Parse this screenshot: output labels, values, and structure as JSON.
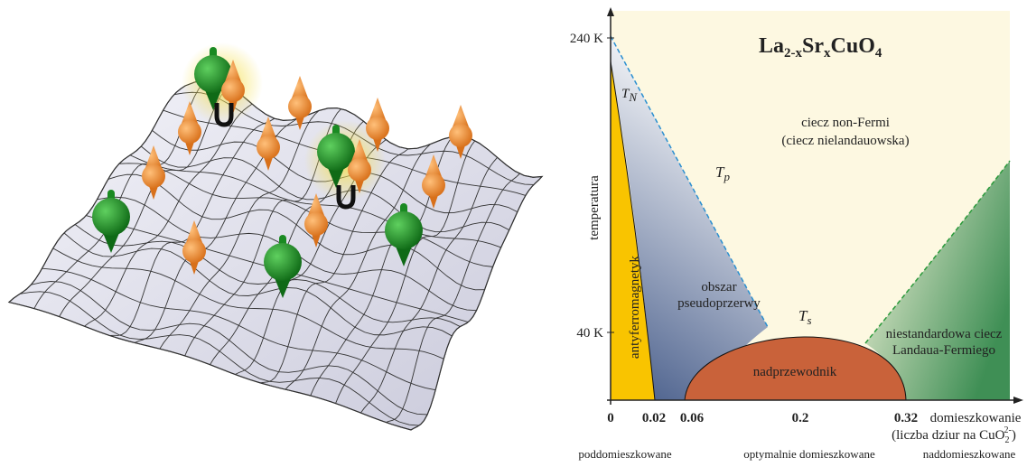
{
  "formula": {
    "parts": [
      "La",
      "2-x",
      "Sr",
      "x",
      "CuO",
      "4"
    ]
  },
  "y_axis": {
    "label": "temperatura",
    "ticks": [
      "240 K",
      "40 K"
    ]
  },
  "x_axis": {
    "ticks": [
      "0",
      "0.02",
      "0.06",
      "0.2",
      "0.32"
    ],
    "label": "domieszkowanie",
    "sublabel": {
      "parts": [
        "(liczba dziur  na CuO",
        "2",
        "2-",
        ")"
      ]
    }
  },
  "lines": {
    "tn": [
      "T",
      "N"
    ],
    "tp": [
      "T",
      "p"
    ],
    "ts": [
      "T",
      "s"
    ]
  },
  "regions": {
    "afm": "antyferromagnetyk",
    "pseudo": [
      "obszar",
      "pseudoprzerwy"
    ],
    "sc": "nadprzewodnik",
    "nonfermi": [
      "ciecz non-Fermi",
      "(ciecz nielandauowska)"
    ],
    "lfl": [
      "niestandardowa ciecz",
      "Landaua-Fermiego"
    ]
  },
  "doping": [
    "poddomieszkowane",
    "optymalnie domieszkowane",
    "naddomieszkowane"
  ]
}
